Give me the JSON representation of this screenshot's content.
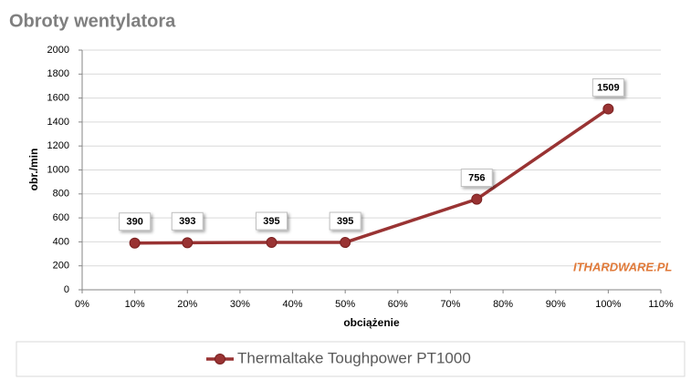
{
  "chart_data": {
    "type": "line",
    "title": "Obroty wentylatora",
    "x_label": "obciążenie",
    "y_label": "obr./min",
    "x": [
      10,
      20,
      36,
      50,
      75,
      100
    ],
    "series": [
      {
        "name": "Thermaltake Toughpower PT1000",
        "color": "#993333",
        "values": [
          390,
          393,
          395,
          395,
          756,
          1509
        ]
      }
    ],
    "xlim": [
      0,
      110
    ],
    "xticks": [
      {
        "value": 0,
        "label": "0%"
      },
      {
        "value": 10,
        "label": "10%"
      },
      {
        "value": 20,
        "label": "20%"
      },
      {
        "value": 30,
        "label": "30%"
      },
      {
        "value": 40,
        "label": "40%"
      },
      {
        "value": 50,
        "label": "50%"
      },
      {
        "value": 60,
        "label": "60%"
      },
      {
        "value": 70,
        "label": "70%"
      },
      {
        "value": 80,
        "label": "80%"
      },
      {
        "value": 90,
        "label": "90%"
      },
      {
        "value": 100,
        "label": "100%"
      },
      {
        "value": 110,
        "label": "110%"
      }
    ],
    "ylim": [
      0,
      2000
    ],
    "yticks": [
      0,
      200,
      400,
      600,
      800,
      1000,
      1200,
      1400,
      1600,
      1800,
      2000
    ],
    "grid": true,
    "legend": "bottom",
    "watermark": "ITHARDWARE.PL"
  }
}
